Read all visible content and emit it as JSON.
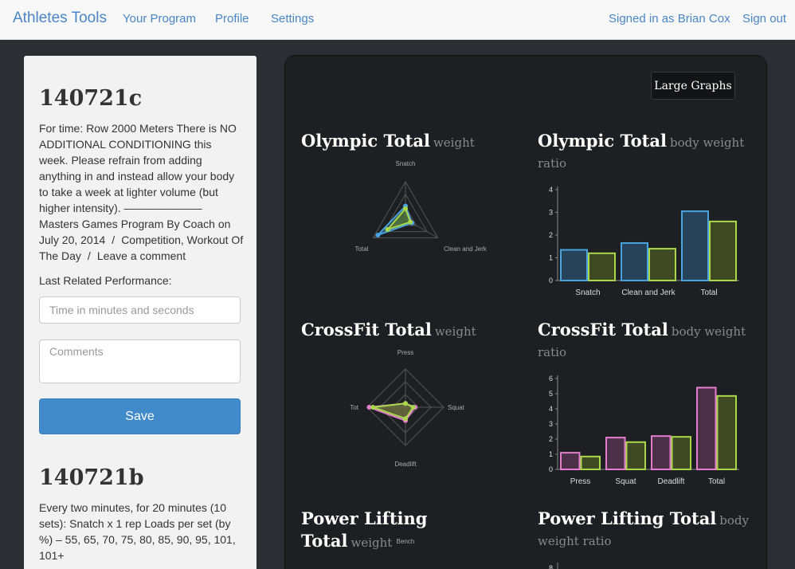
{
  "navbar": {
    "brand": "Athletes Tools",
    "links": [
      "Your Program",
      "Profile",
      "Settings"
    ],
    "signed_in": "Signed in as Brian Cox",
    "sign_out": "Sign out"
  },
  "workouts": [
    {
      "title": "140721c",
      "description": "For time: Row 2000 Meters There is NO ADDITIONAL CONDITIONING this week. Please refrain from adding anything in and instead allow your body to take a week at lighter volume (but higher intensity). ——————— Masters Games Program By Coach on",
      "date": "July 20, 2014",
      "categories": "Competition, Workout Of The Day",
      "comment_link": "Leave a comment",
      "last_performance_label": "Last Related Performance:",
      "time_placeholder": "Time in minutes and seconds",
      "comments_placeholder": "Comments",
      "save_label": "Save"
    },
    {
      "title": "140721b",
      "description": "Every two minutes, for 20 minutes (10 sets): Snatch x 1 rep Loads per set (by %) – 55, 65, 70, 75, 80, 85, 90, 95, 101, 101+"
    }
  ],
  "graphs": {
    "large_button": "Large Graphs",
    "colors": {
      "series_blue": "#4aa3df",
      "series_green": "#a8d84a",
      "series_pink": "#e47ccf"
    }
  },
  "chart_data": [
    {
      "type": "radar",
      "title": "Olympic Total",
      "subtitle": "weight",
      "axes": [
        "Snatch",
        "Clean and Jerk",
        "Total"
      ],
      "series": [
        {
          "values": [
            0.35,
            0.2,
            0.85
          ]
        },
        {
          "values": [
            0.28,
            0.15,
            0.55
          ]
        }
      ]
    },
    {
      "type": "bar",
      "title": "Olympic Total",
      "subtitle": "body weight ratio",
      "categories": [
        "Snatch",
        "Clean and Jerk",
        "Total"
      ],
      "series": [
        {
          "values": [
            1.35,
            1.65,
            3.05
          ]
        },
        {
          "values": [
            1.2,
            1.4,
            2.6
          ]
        }
      ],
      "ylim": [
        0,
        4
      ],
      "yticks": [
        0,
        1,
        2,
        3,
        4
      ]
    },
    {
      "type": "radar",
      "title": "CrossFit Total",
      "subtitle": "weight",
      "axes": [
        "Press",
        "Squat",
        "Deadlift",
        "Total"
      ],
      "axis_labels_display": [
        "Press",
        "Squat",
        "Deadlift",
        "Tot"
      ],
      "series": [
        {
          "values": [
            0.1,
            0.25,
            0.35,
            0.95
          ]
        },
        {
          "values": [
            0.1,
            0.2,
            0.3,
            0.85
          ]
        }
      ]
    },
    {
      "type": "bar",
      "title": "CrossFit Total",
      "subtitle": "body weight ratio",
      "categories": [
        "Press",
        "Squat",
        "Deadlift",
        "Total"
      ],
      "series": [
        {
          "values": [
            1.1,
            2.1,
            2.2,
            5.4
          ]
        },
        {
          "values": [
            0.85,
            1.8,
            2.15,
            4.85
          ]
        }
      ],
      "ylim": [
        0,
        6
      ],
      "yticks": [
        0,
        1,
        2,
        3,
        4,
        5,
        6
      ]
    },
    {
      "type": "radar",
      "title": "Power Lifting Total",
      "subtitle": "weight",
      "axes": [
        "Bench"
      ]
    },
    {
      "type": "bar",
      "title": "Power Lifting Total",
      "subtitle": "body weight ratio",
      "yticks": [
        8
      ]
    }
  ]
}
